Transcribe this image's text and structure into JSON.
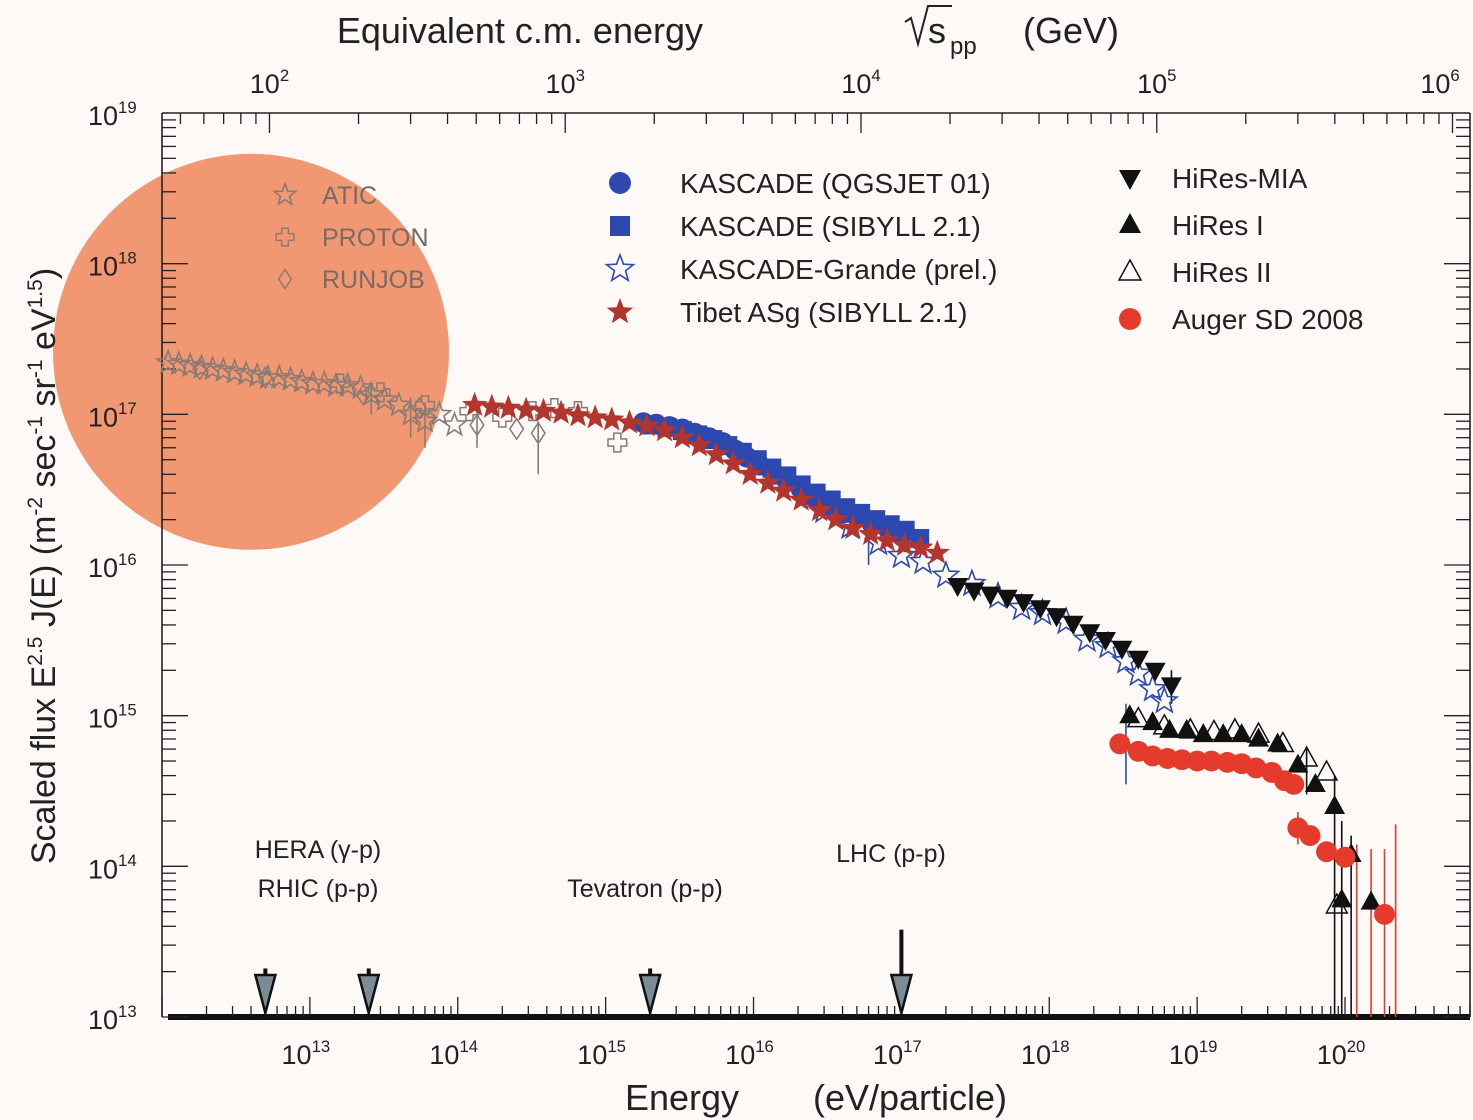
{
  "chart_data": {
    "type": "scatter",
    "title": "",
    "xlabel": "Energy",
    "xlabel_unit": "(eV/particle)",
    "top_xlabel": "Equivalent c.m. energy",
    "top_xlabel_sqrt": "s",
    "top_xlabel_sub": "pp",
    "top_xlabel_unit": "(GeV)",
    "ylabel_prefix": "Scaled flux",
    "ylabel_E": "E",
    "ylabel_E_exp": "2.5",
    "ylabel_J": "J(E)",
    "ylabel_unit_parts": [
      {
        "t": "(m",
        "sup": false
      },
      {
        "t": "-2",
        "sup": true
      },
      {
        "t": " sec",
        "sup": false
      },
      {
        "t": "-1",
        "sup": true
      },
      {
        "t": " sr",
        "sup": false
      },
      {
        "t": "-1",
        "sup": true
      },
      {
        "t": " eV",
        "sup": false
      },
      {
        "t": "1.5",
        "sup": true
      },
      {
        "t": ")",
        "sup": false
      }
    ],
    "x_scale": "log",
    "y_scale": "log",
    "xlim": [
      1000000000000.0,
      7e+20
    ],
    "ylim": [
      10000000000000.0,
      1e+19
    ],
    "x_ticks": [
      {
        "value": 10000000000000.0,
        "base": "10",
        "exp": "13"
      },
      {
        "value": 100000000000000.0,
        "base": "10",
        "exp": "14"
      },
      {
        "value": 1000000000000000.0,
        "base": "10",
        "exp": "15"
      },
      {
        "value": 1e+16,
        "base": "10",
        "exp": "16"
      },
      {
        "value": 1e+17,
        "base": "10",
        "exp": "17"
      },
      {
        "value": 1e+18,
        "base": "10",
        "exp": "18"
      },
      {
        "value": 1e+19,
        "base": "10",
        "exp": "19"
      },
      {
        "value": 1e+20,
        "base": "10",
        "exp": "20"
      }
    ],
    "y_ticks": [
      {
        "value": 10000000000000.0,
        "base": "10",
        "exp": "13"
      },
      {
        "value": 100000000000000.0,
        "base": "10",
        "exp": "14"
      },
      {
        "value": 1000000000000000.0,
        "base": "10",
        "exp": "15"
      },
      {
        "value": 1e+16,
        "base": "10",
        "exp": "16"
      },
      {
        "value": 1e+17,
        "base": "10",
        "exp": "17"
      },
      {
        "value": 1e+18,
        "base": "10",
        "exp": "18"
      },
      {
        "value": 1e+19,
        "base": "10",
        "exp": "19"
      }
    ],
    "top_ticks": [
      {
        "gev": 100.0,
        "base": "10",
        "exp": "2"
      },
      {
        "gev": 1000.0,
        "base": "10",
        "exp": "3"
      },
      {
        "gev": 10000.0,
        "base": "10",
        "exp": "4"
      },
      {
        "gev": 100000.0,
        "base": "10",
        "exp": "5"
      },
      {
        "gev": 1000000.0,
        "base": "10",
        "exp": "6"
      }
    ],
    "highlight_circle": {
      "center_energy_ev": 4000000000000.0,
      "center_flux": 2.6e+17,
      "color": "#f0926a"
    },
    "series": [
      {
        "name": "ATIC",
        "marker": "star-open",
        "color": "#8a7a74",
        "legend_group": "circle",
        "points": [
          [
            1100000000000.0,
            2.2e+17
          ],
          [
            1300000000000.0,
            2.15e+17
          ],
          [
            1550000000000.0,
            2.1e+17
          ],
          [
            1850000000000.0,
            2.05e+17
          ],
          [
            2200000000000.0,
            2e+17
          ],
          [
            2600000000000.0,
            1.95e+17
          ],
          [
            3100000000000.0,
            1.9e+17
          ],
          [
            3700000000000.0,
            1.85e+17
          ],
          [
            4400000000000.0,
            1.8e+17
          ],
          [
            5200000000000.0,
            1.75e+17
          ],
          [
            6200000000000.0,
            1.75e+17
          ],
          [
            7400000000000.0,
            1.7e+17
          ],
          [
            8800000000000.0,
            1.65e+17
          ],
          [
            10500000000000.0,
            1.6e+17
          ],
          [
            12500000000000.0,
            1.6e+17
          ],
          [
            15000000000000.0,
            1.55e+17
          ],
          [
            18000000000000.0,
            1.55e+17
          ],
          [
            22000000000000.0,
            1.5e+17
          ],
          [
            26000000000000.0,
            1.35e+17
          ],
          [
            32000000000000.0,
            1.25e+17
          ],
          [
            40000000000000.0,
            1.15e+17
          ],
          [
            48000000000000.0,
            1e+17
          ],
          [
            60000000000000.0,
            9e+16
          ],
          [
            75000000000000.0,
            1e+17
          ],
          [
            95000000000000.0,
            8.5e+16
          ]
        ]
      },
      {
        "name": "PROTON",
        "marker": "cross-open",
        "color": "#8a7a74",
        "legend_group": "circle",
        "points": [
          [
            16000000000000.0,
            1.6e+17
          ],
          [
            30000000000000.0,
            1.4e+17
          ],
          [
            60000000000000.0,
            1.15e+17
          ],
          [
            120000000000000.0,
            1.05e+17
          ],
          [
            200000000000000.0,
            9.5e+16
          ],
          [
            320000000000000.0,
            1.05e+17
          ],
          [
            450000000000000.0,
            1.1e+17
          ],
          [
            650000000000000.0,
            1.05e+17
          ],
          [
            1200000000000000.0,
            6.5e+16
          ]
        ]
      },
      {
        "name": "RUNJOB",
        "marker": "diamond-open",
        "color": "#8a7a74",
        "legend_group": "circle",
        "points": [
          [
            1800000000000.0,
            2e+17
          ],
          [
            5000000000000.0,
            1.75e+17
          ],
          [
            23000000000000.0,
            1.35e+17
          ],
          [
            55000000000000.0,
            1.1e+17
          ],
          [
            135000000000000.0,
            8.5e+16
          ],
          [
            250000000000000.0,
            8e+16
          ],
          [
            350000000000000.0,
            7.5e+16
          ]
        ]
      },
      {
        "name": "KASCADE (QGSJET 01)",
        "marker": "circle",
        "color": "#2d49b0",
        "legend_group": "center",
        "points": [
          [
            1800000000000000.0,
            8.8e+16
          ],
          [
            2200000000000000.0,
            8.6e+16
          ],
          [
            2700000000000000.0,
            8.3e+16
          ],
          [
            3300000000000000.0,
            8e+16
          ],
          [
            4000000000000000.0,
            7.5e+16
          ],
          [
            5000000000000000.0,
            7e+16
          ],
          [
            6200000000000000.0,
            6.5e+16
          ],
          [
            7500000000000000.0,
            5.8e+16
          ],
          [
            9000000000000000.0,
            5.2e+16
          ],
          [
            1.1e+16,
            4.6e+16
          ],
          [
            1.4e+16,
            4e+16
          ],
          [
            1.7e+16,
            3.6e+16
          ],
          [
            2.1e+16,
            3.2e+16
          ],
          [
            2.6e+16,
            2.8e+16
          ],
          [
            3.2e+16,
            2.5e+16
          ],
          [
            4e+16,
            2.2e+16
          ],
          [
            5e+16,
            2.1e+16
          ],
          [
            6.3e+16,
            1.9e+16
          ],
          [
            7.9e+16,
            1.8e+16
          ],
          [
            1e+17,
            1.6e+16
          ]
        ]
      },
      {
        "name": "KASCADE (SIBYLL 2.1)",
        "marker": "square",
        "color": "#2d49b0",
        "legend_group": "center",
        "points": [
          [
            2000000000000000.0,
            8.5e+16
          ],
          [
            2600000000000000.0,
            8.2e+16
          ],
          [
            3300000000000000.0,
            7.8e+16
          ],
          [
            4200000000000000.0,
            7.3e+16
          ],
          [
            5300000000000000.0,
            6.8e+16
          ],
          [
            6700000000000000.0,
            6.2e+16
          ],
          [
            8400000000000000.0,
            5.6e+16
          ],
          [
            1.06e+16,
            5e+16
          ],
          [
            1.33e+16,
            4.4e+16
          ],
          [
            1.68e+16,
            3.9e+16
          ],
          [
            2.1e+16,
            3.4e+16
          ],
          [
            2.65e+16,
            3e+16
          ],
          [
            3.35e+16,
            2.7e+16
          ],
          [
            4.2e+16,
            2.4e+16
          ],
          [
            5.3e+16,
            2.2e+16
          ],
          [
            6.7e+16,
            2e+16
          ],
          [
            8.4e+16,
            1.85e+16
          ],
          [
            1.06e+17,
            1.7e+16
          ],
          [
            1.33e+17,
            1.5e+16
          ]
        ]
      },
      {
        "name": "KASCADE-Grande (prel.)",
        "marker": "star-open",
        "color": "#2d49b0",
        "legend_group": "center",
        "points": [
          [
            3e+16,
            2.3e+16
          ],
          [
            4.5e+16,
            1.8e+16
          ],
          [
            7e+16,
            1.4e+16
          ],
          [
            1e+17,
            1.15e+16
          ],
          [
            1.4e+17,
            1.05e+16
          ],
          [
            2e+17,
            8500000000000000.0
          ],
          [
            3e+17,
            7500000000000000.0
          ],
          [
            4.5e+17,
            6200000000000000.0
          ],
          [
            6.5e+17,
            5200000000000000.0
          ],
          [
            9e+17,
            4800000000000000.0
          ],
          [
            1.3e+18,
            4200000000000000.0
          ],
          [
            1.8e+18,
            3200000000000000.0
          ],
          [
            2.5e+18,
            2900000000000000.0
          ],
          [
            3.3e+18,
            2300000000000000.0
          ],
          [
            4e+18,
            1900000000000000.0
          ],
          [
            5e+18,
            1500000000000000.0
          ],
          [
            6e+18,
            1250000000000000.0
          ]
        ]
      },
      {
        "name": "Tibet ASg (SIBYLL 2.1)",
        "marker": "star",
        "color": "#b2352e",
        "legend_group": "center",
        "points": [
          [
            130000000000000.0,
            1.15e+17
          ],
          [
            170000000000000.0,
            1.12e+17
          ],
          [
            220000000000000.0,
            1.1e+17
          ],
          [
            290000000000000.0,
            1.07e+17
          ],
          [
            380000000000000.0,
            1.05e+17
          ],
          [
            500000000000000.0,
            1.02e+17
          ],
          [
            650000000000000.0,
            9.8e+16
          ],
          [
            850000000000000.0,
            9.5e+16
          ],
          [
            1100000000000000.0,
            9.2e+16
          ],
          [
            1450000000000000.0,
            8.8e+16
          ],
          [
            1900000000000000.0,
            8.4e+16
          ],
          [
            2500000000000000.0,
            7.8e+16
          ],
          [
            3300000000000000.0,
            7e+16
          ],
          [
            4300000000000000.0,
            6.2e+16
          ],
          [
            5600000000000000.0,
            5.4e+16
          ],
          [
            7300000000000000.0,
            4.7e+16
          ],
          [
            9500000000000000.0,
            4e+16
          ],
          [
            1.25e+16,
            3.5e+16
          ],
          [
            1.6e+16,
            3.1e+16
          ],
          [
            2.1e+16,
            2.7e+16
          ],
          [
            2.8e+16,
            2.3e+16
          ],
          [
            3.6e+16,
            2e+16
          ],
          [
            4.7e+16,
            1.75e+16
          ],
          [
            6.2e+16,
            1.6e+16
          ],
          [
            8e+16,
            1.45e+16
          ],
          [
            1.05e+17,
            1.35e+16
          ],
          [
            1.35e+17,
            1.3e+16
          ],
          [
            1.75e+17,
            1.2e+16
          ]
        ]
      },
      {
        "name": "HiRes-MIA",
        "marker": "triangle-down",
        "color": "#111111",
        "legend_group": "right",
        "points": [
          [
            2.4e+17,
            7300000000000000.0
          ],
          [
            3.1e+17,
            6800000000000000.0
          ],
          [
            4e+17,
            6400000000000000.0
          ],
          [
            5.2e+17,
            6100000000000000.0
          ],
          [
            6.7e+17,
            5700000000000000.0
          ],
          [
            8.7e+17,
            5200000000000000.0
          ],
          [
            1.12e+18,
            4600000000000000.0
          ],
          [
            1.45e+18,
            4100000000000000.0
          ],
          [
            1.88e+18,
            3600000000000000.0
          ],
          [
            2.4e+18,
            3200000000000000.0
          ],
          [
            3.1e+18,
            2800000000000000.0
          ],
          [
            4e+18,
            2400000000000000.0
          ],
          [
            5.2e+18,
            2000000000000000.0
          ],
          [
            6.7e+18,
            1600000000000000.0
          ]
        ]
      },
      {
        "name": "HiRes I",
        "marker": "triangle",
        "color": "#111111",
        "legend_group": "right",
        "points": [
          [
            3.5e+18,
            1000000000000000.0
          ],
          [
            5e+18,
            900000000000000.0
          ],
          [
            6.5e+18,
            800000000000000.0
          ],
          [
            8.5e+18,
            800000000000000.0
          ],
          [
            1.1e+19,
            750000000000000.0
          ],
          [
            1.5e+19,
            750000000000000.0
          ],
          [
            2e+19,
            750000000000000.0
          ],
          [
            2.6e+19,
            700000000000000.0
          ],
          [
            3.5e+19,
            650000000000000.0
          ],
          [
            4.8e+19,
            470000000000000.0
          ],
          [
            6.3e+19,
            350000000000000.0
          ],
          [
            8.5e+19,
            250000000000000.0
          ],
          [
            9.5e+19,
            60000000000000.0
          ],
          [
            1.1e+20,
            120000000000000.0
          ],
          [
            1.5e+20,
            58000000000000.0
          ]
        ]
      },
      {
        "name": "HiRes II",
        "marker": "triangle-open",
        "color": "#111111",
        "legend_group": "right",
        "points": [
          [
            4e+18,
            950000000000000.0
          ],
          [
            6e+18,
            850000000000000.0
          ],
          [
            9e+18,
            800000000000000.0
          ],
          [
            1.3e+19,
            780000000000000.0
          ],
          [
            1.8e+19,
            800000000000000.0
          ],
          [
            2.6e+19,
            750000000000000.0
          ],
          [
            3.8e+19,
            650000000000000.0
          ],
          [
            5.5e+19,
            520000000000000.0
          ],
          [
            7.5e+19,
            420000000000000.0
          ],
          [
            8.8e+19,
            55000000000000.0
          ]
        ]
      },
      {
        "name": "Auger SD 2008",
        "marker": "circle",
        "color": "#e53b2c",
        "legend_group": "right",
        "points": [
          [
            3e+18,
            650000000000000.0
          ],
          [
            4e+18,
            580000000000000.0
          ],
          [
            5e+18,
            540000000000000.0
          ],
          [
            6.3e+18,
            520000000000000.0
          ],
          [
            7.9e+18,
            510000000000000.0
          ],
          [
            1e+19,
            500000000000000.0
          ],
          [
            1.25e+19,
            500000000000000.0
          ],
          [
            1.6e+19,
            490000000000000.0
          ],
          [
            2e+19,
            480000000000000.0
          ],
          [
            2.5e+19,
            450000000000000.0
          ],
          [
            3.2e+19,
            420000000000000.0
          ],
          [
            3.9e+19,
            370000000000000.0
          ],
          [
            4.5e+19,
            350000000000000.0
          ],
          [
            4.8e+19,
            180000000000000.0
          ],
          [
            5.8e+19,
            160000000000000.0
          ],
          [
            7.5e+19,
            125000000000000.0
          ],
          [
            1e+20,
            115000000000000.0
          ],
          [
            1.85e+20,
            48000000000000.0
          ]
        ]
      }
    ],
    "colliders": [
      {
        "label": "HERA (γ-p)",
        "energy_ev": 5000000000000.0,
        "arrow_top_flux": 21000000000000.0,
        "label_group": "hera"
      },
      {
        "label": "RHIC (p-p)",
        "energy_ev": 25000000000000.0,
        "arrow_top_flux": 21000000000000.0,
        "label_group": "hera"
      },
      {
        "label": "Tevatron (p-p)",
        "energy_ev": 2000000000000000.0,
        "arrow_top_flux": 21000000000000.0,
        "label_group": "tev"
      },
      {
        "label": "LHC (p-p)",
        "energy_ev": 1e+17,
        "arrow_top_flux": 38000000000000.0,
        "label_group": "lhc"
      }
    ]
  }
}
